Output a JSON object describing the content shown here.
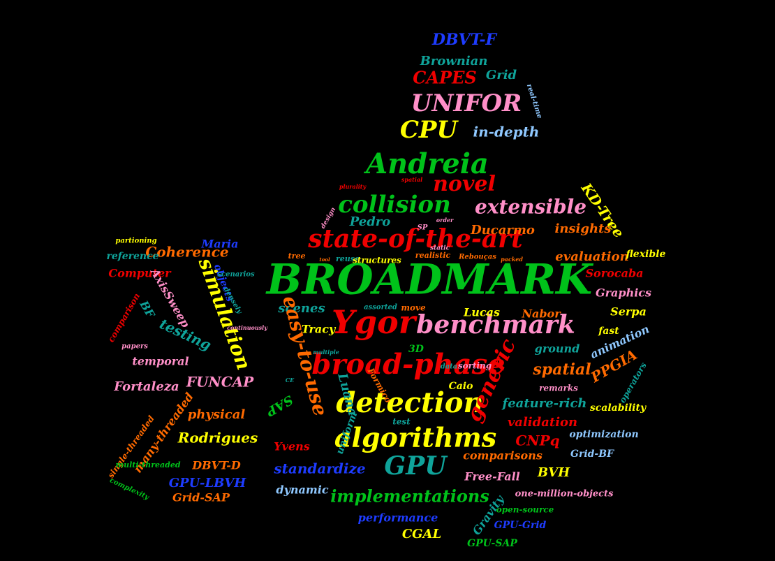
{
  "palette": {
    "background": "#000000",
    "green": "#00C21A",
    "red": "#F00000",
    "yellow": "#FFFF00",
    "pink": "#FF8FC8",
    "blue": "#1E3CFF",
    "teal": "#0FA39A",
    "orange": "#FF6A00",
    "lightblue": "#8FC8FF"
  },
  "words": [
    "BROADMARK",
    "Ygor",
    "broad-phase",
    "benchmark",
    "detection",
    "algorithms",
    "state-of-the-art",
    "collision",
    "Andreia",
    "novel",
    "extensible",
    "CPU",
    "UNIFOR",
    "CAPES",
    "Brownian",
    "DBVT-F",
    "Grid",
    "in-depth",
    "real-time",
    "KD-Tree",
    "insights",
    "evaluation",
    "flexible",
    "Ducarmo",
    "Pedro",
    "SP",
    "Sorocaba",
    "Graphics",
    "Serpa",
    "Nabor",
    "Lucas",
    "fast",
    "animation",
    "ground",
    "generic",
    "spatial",
    "PPGIA",
    "operators",
    "remarks",
    "feature-rich",
    "scalability",
    "validation",
    "optimization",
    "Grid-BF",
    "CNPq",
    "comparisons",
    "BVH",
    "Free-Fall",
    "GPU",
    "standardize",
    "implementations",
    "performance",
    "CGAL",
    "GPU-Grid",
    "GPU-SAP",
    "Gravity",
    "open-source",
    "one-million-objects",
    "dynamic",
    "Yvens",
    "uniform",
    "test",
    "Caio",
    "3D",
    "sorting",
    "data",
    "Tracy",
    "scenes",
    "easy-to-use",
    "Luana",
    "SAP",
    "simulation",
    "Coherence",
    "Maria",
    "objects",
    "reference",
    "Computer",
    "partioning",
    "AxisSweep",
    "BF",
    "comparison",
    "testing",
    "FUNCAP",
    "Fortaleza",
    "temporal",
    "physical",
    "Rodrigues",
    "DBVT-D",
    "GPU-LBVH",
    "Grid-SAP",
    "many-threaded",
    "single-threaded",
    "multi-threaded",
    "complexity",
    "papers",
    "reuse",
    "structures",
    "realistic",
    "Rebouças",
    "tree",
    "assorted",
    "move",
    "static",
    "order",
    "design",
    "plurality",
    "spatial",
    "densely",
    "continuously",
    "multiple",
    "CE",
    "Formico",
    "scenarios",
    "packed",
    "tool"
  ]
}
